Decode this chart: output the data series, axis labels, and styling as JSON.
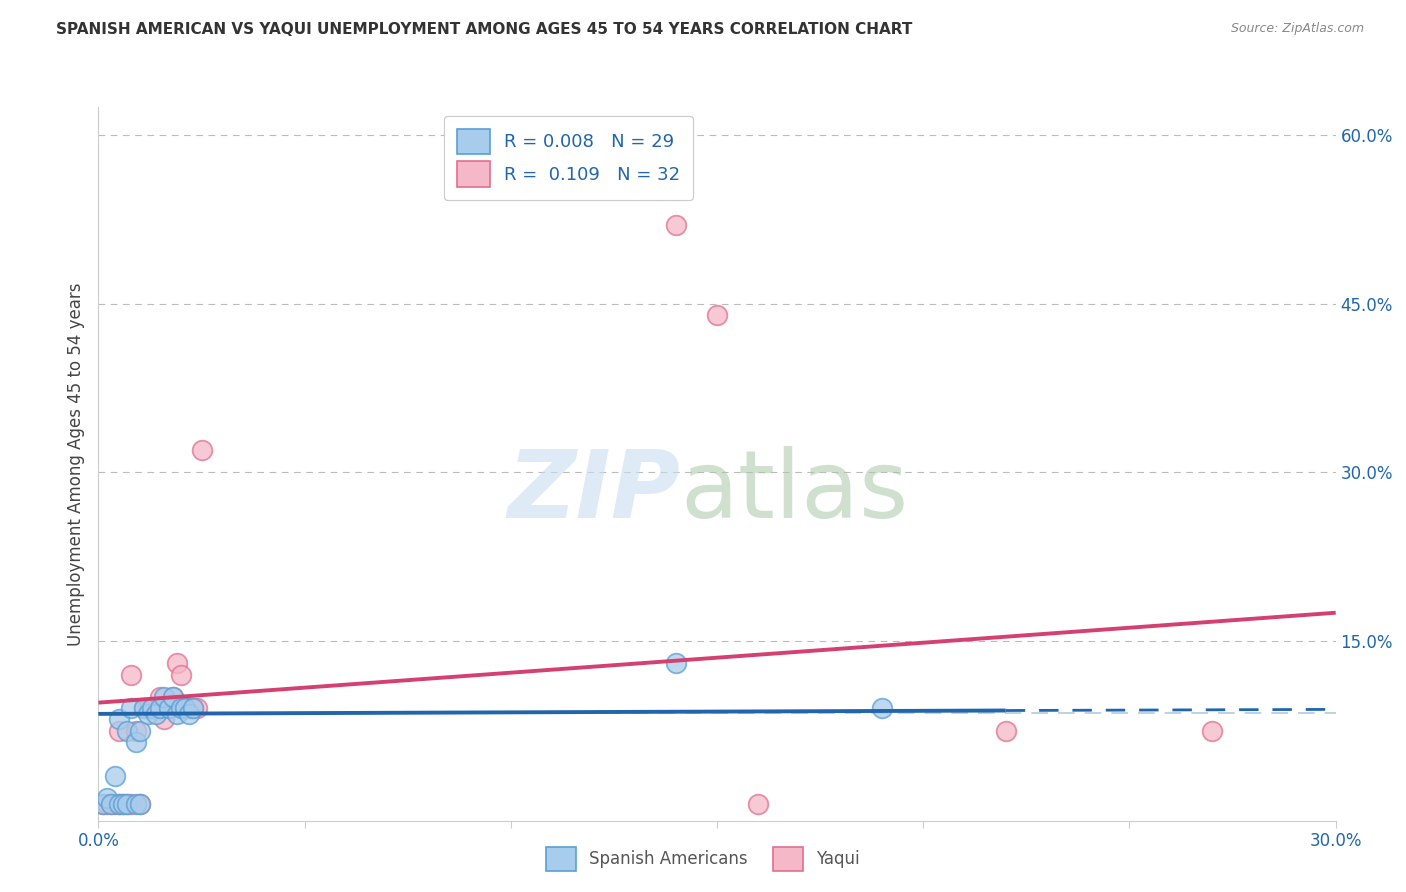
{
  "title": "SPANISH AMERICAN VS YAQUI UNEMPLOYMENT AMONG AGES 45 TO 54 YEARS CORRELATION CHART",
  "source": "Source: ZipAtlas.com",
  "ylabel": "Unemployment Among Ages 45 to 54 years",
  "xlim": [
    0.0,
    0.3
  ],
  "ylim": [
    -0.01,
    0.625
  ],
  "xticks": [
    0.0,
    0.05,
    0.1,
    0.15,
    0.2,
    0.25,
    0.3
  ],
  "xticklabels": [
    "0.0%",
    "",
    "",
    "",
    "",
    "",
    "30.0%"
  ],
  "yticks_right": [
    0.0,
    0.15,
    0.3,
    0.45,
    0.6
  ],
  "ytick_right_labels": [
    "",
    "15.0%",
    "30.0%",
    "45.0%",
    "60.0%"
  ],
  "legend_R_blue": "0.008",
  "legend_N_blue": "29",
  "legend_R_pink": "0.109",
  "legend_N_pink": "32",
  "blue_scatter_color": "#a8ccec",
  "blue_edge_color": "#5a9fd4",
  "pink_scatter_color": "#f4b8c8",
  "pink_edge_color": "#e07090",
  "blue_line_color": "#2166ac",
  "pink_line_color": "#d44070",
  "grid_color": "#bbbbbb",
  "background_color": "#ffffff",
  "blue_scatter_x": [
    0.001,
    0.002,
    0.003,
    0.004,
    0.005,
    0.005,
    0.006,
    0.007,
    0.007,
    0.008,
    0.009,
    0.009,
    0.01,
    0.01,
    0.011,
    0.012,
    0.013,
    0.014,
    0.015,
    0.016,
    0.017,
    0.018,
    0.019,
    0.02,
    0.021,
    0.022,
    0.023,
    0.14,
    0.19
  ],
  "blue_scatter_y": [
    0.005,
    0.01,
    0.005,
    0.03,
    0.005,
    0.08,
    0.005,
    0.005,
    0.07,
    0.09,
    0.005,
    0.06,
    0.005,
    0.07,
    0.09,
    0.085,
    0.09,
    0.085,
    0.09,
    0.1,
    0.09,
    0.1,
    0.085,
    0.09,
    0.09,
    0.085,
    0.09,
    0.13,
    0.09
  ],
  "pink_scatter_x": [
    0.001,
    0.002,
    0.003,
    0.004,
    0.005,
    0.005,
    0.006,
    0.007,
    0.008,
    0.008,
    0.009,
    0.01,
    0.011,
    0.012,
    0.013,
    0.014,
    0.015,
    0.016,
    0.017,
    0.018,
    0.019,
    0.02,
    0.021,
    0.022,
    0.023,
    0.024,
    0.025,
    0.14,
    0.15,
    0.16,
    0.22,
    0.27
  ],
  "pink_scatter_y": [
    0.005,
    0.005,
    0.005,
    0.005,
    0.005,
    0.07,
    0.005,
    0.005,
    0.005,
    0.12,
    0.07,
    0.005,
    0.09,
    0.09,
    0.09,
    0.09,
    0.1,
    0.08,
    0.09,
    0.1,
    0.13,
    0.12,
    0.09,
    0.09,
    0.09,
    0.09,
    0.32,
    0.52,
    0.44,
    0.005,
    0.07,
    0.07
  ],
  "blue_trend_x": [
    0.0,
    0.22,
    0.3
  ],
  "blue_trend_y": [
    0.085,
    0.088,
    0.089
  ],
  "blue_trend_solid_end": 0.22,
  "pink_trend_x": [
    0.0,
    0.3
  ],
  "pink_trend_y": [
    0.095,
    0.175
  ],
  "ref_line_y": 0.086
}
